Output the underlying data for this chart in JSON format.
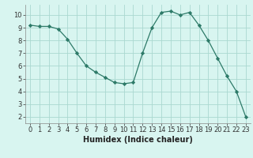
{
  "x": [
    0,
    1,
    2,
    3,
    4,
    5,
    6,
    7,
    8,
    9,
    10,
    11,
    12,
    13,
    14,
    15,
    16,
    17,
    18,
    19,
    20,
    21,
    22,
    23
  ],
  "y": [
    9.2,
    9.1,
    9.1,
    8.9,
    8.1,
    7.0,
    6.0,
    5.5,
    5.1,
    4.7,
    4.6,
    4.7,
    7.0,
    9.0,
    10.2,
    10.3,
    10.0,
    10.2,
    9.2,
    8.0,
    6.6,
    5.2,
    4.0,
    2.0
  ],
  "title": "",
  "xlabel": "Humidex (Indice chaleur)",
  "ylabel": "",
  "xlim": [
    -0.5,
    23.5
  ],
  "ylim": [
    1.5,
    10.8
  ],
  "yticks": [
    2,
    3,
    4,
    5,
    6,
    7,
    8,
    9,
    10
  ],
  "xticks": [
    0,
    1,
    2,
    3,
    4,
    5,
    6,
    7,
    8,
    9,
    10,
    11,
    12,
    13,
    14,
    15,
    16,
    17,
    18,
    19,
    20,
    21,
    22,
    23
  ],
  "line_color": "#2d7a68",
  "marker": "D",
  "marker_size": 2.2,
  "bg_color": "#d8f5f0",
  "grid_color": "#aad8d0",
  "label_fontsize": 7,
  "tick_fontsize": 6
}
